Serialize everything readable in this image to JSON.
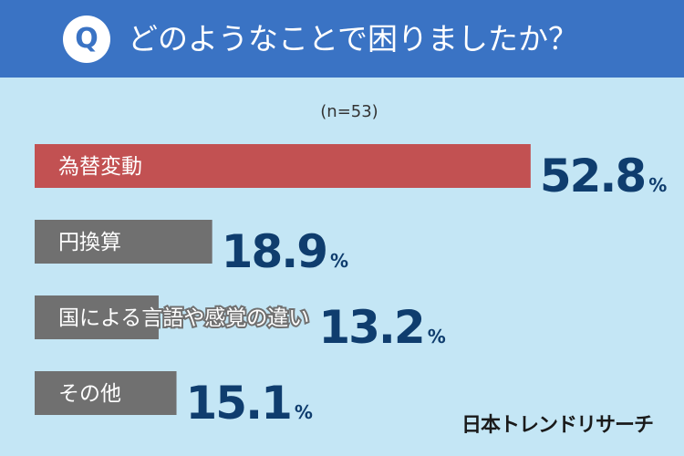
{
  "header": {
    "q_label": "Q",
    "question": "どのようなことで困りましたか？",
    "color": "#3a73c4"
  },
  "sample_note": "(n=53)",
  "brand": "日本トレンドリサーチ",
  "chart_data": {
    "type": "bar",
    "orientation": "horizontal",
    "categories": [
      "為替変動",
      "円換算",
      "国による言語や感覚の違い",
      "その他"
    ],
    "values": [
      52.8,
      18.9,
      13.2,
      15.1
    ],
    "unit": "%",
    "colors": [
      "#c25152",
      "#707070",
      "#707070",
      "#707070"
    ],
    "value_color": "#0f3d6e",
    "background": "#c4e6f5",
    "grid": false,
    "legend": false
  }
}
